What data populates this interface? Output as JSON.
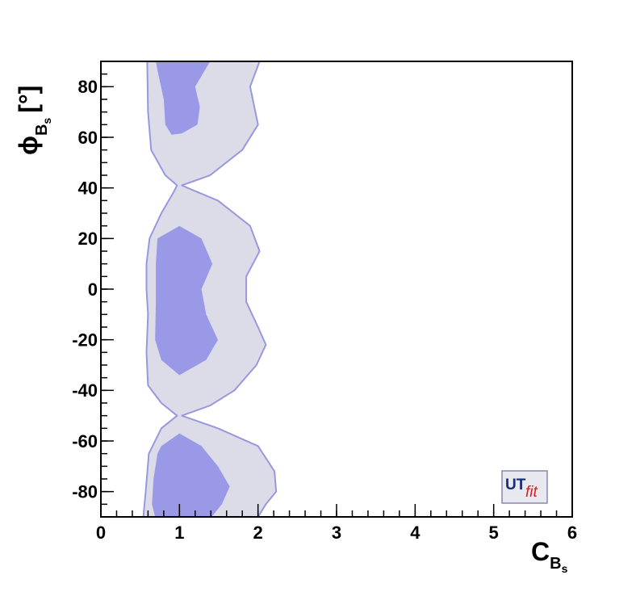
{
  "chart_data": {
    "type": "contour",
    "xlabel": {
      "main": "C",
      "sub": "B",
      "subsub": "s"
    },
    "ylabel": {
      "main": "ϕ",
      "sub": "B",
      "subsub": "s",
      "unit": "[°]"
    },
    "logo": {
      "left": "UT",
      "right": "fit"
    },
    "xlim": [
      0,
      6
    ],
    "xticks": [
      0,
      1,
      2,
      3,
      4,
      5,
      6
    ],
    "xminor": 0.2,
    "ylim": [
      -90,
      90
    ],
    "yticks": [
      -80,
      -60,
      -40,
      -20,
      0,
      20,
      40,
      60,
      80
    ],
    "yminor": 5,
    "regions": [
      {
        "fill": "#dcdce8",
        "stroke": "#9898e0",
        "x": [
          2.02,
          1.9,
          2.0,
          1.8,
          1.39,
          1.03,
          1.18,
          1.49,
          1.9,
          2.02,
          1.85,
          1.85,
          2.0,
          2.1,
          1.98,
          1.7,
          1.39,
          1.03,
          1.49,
          2.0,
          2.21,
          2.23,
          2.1,
          2.0,
          0.54,
          0.57,
          0.61,
          0.77,
          0.97,
          0.77,
          0.6,
          0.58,
          0.6,
          0.58,
          0.58,
          0.62,
          0.77,
          0.92,
          0.97,
          0.82,
          0.64,
          0.6,
          0.59
        ],
        "y": [
          90,
          80,
          65,
          55,
          45,
          41,
          39,
          35,
          25,
          15,
          5,
          -5,
          -15,
          -22,
          -30,
          -40,
          -46,
          -50,
          -55,
          -62,
          -72,
          -80,
          -85,
          -90,
          -90,
          -80,
          -65,
          -55,
          -50,
          -45,
          -38,
          -25,
          -10,
          0,
          10,
          20,
          30,
          38,
          41,
          45,
          55,
          70,
          90
        ]
      },
      {
        "fill": "#9999e8",
        "stroke": "none",
        "x": [
          0.7,
          1.39,
          1.2,
          1.26,
          1.23,
          1.03,
          0.9,
          0.82,
          0.8,
          0.73
        ],
        "y": [
          90,
          90,
          80,
          72,
          65,
          61.5,
          61,
          65,
          75,
          85
        ]
      },
      {
        "fill": "#9999e8",
        "stroke": "none",
        "x": [
          1.0,
          1.28,
          1.42,
          1.28,
          1.34,
          1.49,
          1.34,
          1.0,
          0.77,
          0.69,
          0.7,
          0.7,
          0.72
        ],
        "y": [
          25,
          20,
          10,
          0,
          -10,
          -20,
          -28,
          -34,
          -28,
          -20,
          -5,
          10,
          20
        ]
      },
      {
        "fill": "#9999e8",
        "stroke": "none",
        "x": [
          1.0,
          1.28,
          1.49,
          1.64,
          1.54,
          1.41,
          0.69,
          0.65,
          0.67,
          0.72,
          0.77
        ],
        "y": [
          -57,
          -62,
          -70,
          -78,
          -85,
          -90,
          -90,
          -85,
          -75,
          -65,
          -62
        ]
      }
    ]
  }
}
